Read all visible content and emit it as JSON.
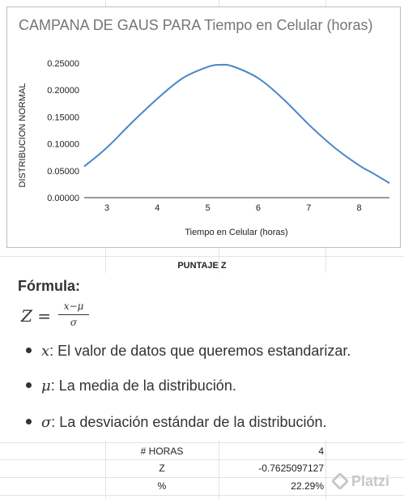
{
  "chart_data": {
    "type": "line",
    "title": "CAMPANA DE GAUS PARA Tiempo en Celular (horas)",
    "xlabel": "Tiempo en Celular (horas)",
    "ylabel": "DISTRIBUCION NORMAL",
    "xlim": [
      2.55,
      8.6
    ],
    "ylim": [
      0,
      0.25
    ],
    "x_ticks": [
      "3",
      "4",
      "5",
      "6",
      "7",
      "8"
    ],
    "y_ticks": [
      "0.00000",
      "0.05000",
      "0.10000",
      "0.15000",
      "0.20000",
      "0.25000"
    ],
    "grid": false,
    "line_color": "#4a86c8",
    "series": [
      {
        "x": [
          2.55,
          3.0,
          3.5,
          4.0,
          4.5,
          5.0,
          5.25,
          5.5,
          6.0,
          6.5,
          7.0,
          7.5,
          8.0,
          8.3,
          8.6
        ],
        "y": [
          0.058,
          0.093,
          0.14,
          0.184,
          0.222,
          0.243,
          0.247,
          0.244,
          0.222,
          0.183,
          0.136,
          0.094,
          0.06,
          0.044,
          0.027
        ]
      }
    ]
  },
  "section": {
    "header": "PUNTAJE Z"
  },
  "formula": {
    "label": "Fórmula:",
    "lhs": "Z =",
    "numerator": "x−μ",
    "denominator": "σ",
    "bullets": [
      {
        "symbol": "x",
        "text": ": El valor de datos que queremos estandarizar."
      },
      {
        "symbol": "μ",
        "text": ": La media de la distribución."
      },
      {
        "symbol": "σ",
        "text": ": La desviación estándar de la distribución."
      }
    ]
  },
  "table": {
    "rows": [
      {
        "label": "# HORAS",
        "value": "4"
      },
      {
        "label": "Z",
        "value": "-0.7625097127"
      },
      {
        "label": "%",
        "value": "22.29%"
      }
    ]
  },
  "watermark": {
    "text": "Platzi"
  }
}
